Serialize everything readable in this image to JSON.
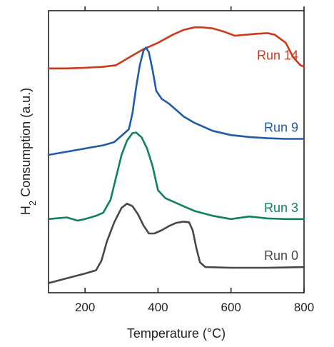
{
  "chart_data": {
    "type": "line",
    "xlabel": "Temperature (°C)",
    "ylabel": {
      "prefix": "H",
      "sub": "2",
      "rest": " Consumption (a.u.)"
    },
    "xlim": [
      100,
      800
    ],
    "xticks": [
      200,
      400,
      600,
      800
    ],
    "xtick_labels": [
      "200",
      "400",
      "600",
      "800"
    ],
    "y_ticks": false,
    "grid": false,
    "series": [
      {
        "name": "Run 14",
        "color": "#cc3a1b",
        "x": [
          100,
          150,
          200,
          250,
          285,
          300,
          330,
          360,
          400,
          440,
          470,
          500,
          520,
          550,
          580,
          610,
          640,
          670,
          700,
          720,
          750,
          770,
          790,
          800
        ],
        "y": [
          7.0,
          7.0,
          7.02,
          7.05,
          7.1,
          7.2,
          7.4,
          7.6,
          7.8,
          8.05,
          8.2,
          8.28,
          8.28,
          8.25,
          8.15,
          8.02,
          8.05,
          8.08,
          8.1,
          8.05,
          7.8,
          7.35,
          7.1,
          7.05
        ]
      },
      {
        "name": "Run 9",
        "color": "#1f5ca8",
        "x": [
          100,
          150,
          200,
          250,
          280,
          300,
          320,
          330,
          340,
          350,
          360,
          367,
          375,
          385,
          395,
          410,
          430,
          450,
          470,
          500,
          550,
          600,
          650,
          700,
          750,
          800
        ],
        "y": [
          4.3,
          4.4,
          4.5,
          4.6,
          4.7,
          4.9,
          5.1,
          5.6,
          6.4,
          7.1,
          7.55,
          7.65,
          7.5,
          6.95,
          6.3,
          6.05,
          5.9,
          5.7,
          5.5,
          5.3,
          5.05,
          4.92,
          4.86,
          4.82,
          4.8,
          4.8
        ]
      },
      {
        "name": "Run 3",
        "color": "#108063",
        "x": [
          100,
          150,
          180,
          200,
          230,
          250,
          270,
          285,
          300,
          315,
          330,
          340,
          355,
          370,
          385,
          400,
          420,
          440,
          460,
          500,
          550,
          600,
          650,
          700,
          750,
          800
        ],
        "y": [
          2.3,
          2.35,
          2.25,
          2.3,
          2.4,
          2.5,
          2.9,
          3.6,
          4.3,
          4.75,
          4.98,
          5.0,
          4.85,
          4.5,
          3.95,
          3.2,
          2.95,
          2.85,
          2.75,
          2.55,
          2.4,
          2.3,
          2.38,
          2.32,
          2.3,
          2.3
        ]
      },
      {
        "name": "Run 0",
        "color": "#474747",
        "x": [
          100,
          150,
          200,
          230,
          245,
          260,
          280,
          300,
          315,
          330,
          345,
          360,
          375,
          390,
          410,
          430,
          450,
          470,
          485,
          495,
          505,
          515,
          530,
          600,
          700,
          800
        ],
        "y": [
          0.3,
          0.45,
          0.6,
          0.7,
          1.0,
          1.6,
          2.2,
          2.65,
          2.78,
          2.7,
          2.45,
          2.1,
          1.85,
          1.85,
          1.95,
          2.08,
          2.18,
          2.22,
          2.2,
          1.95,
          1.4,
          0.95,
          0.8,
          0.78,
          0.78,
          0.8
        ]
      }
    ]
  }
}
